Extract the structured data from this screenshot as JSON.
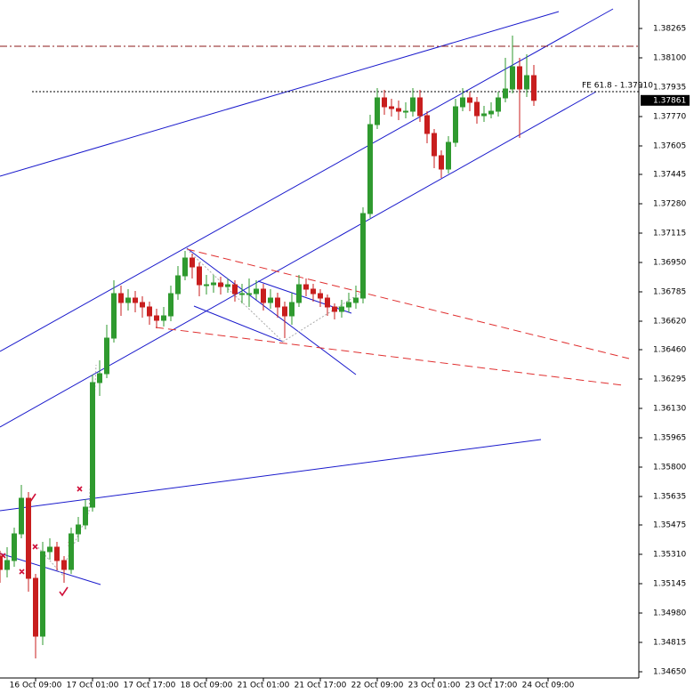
{
  "chart_data": {
    "type": "candlestick",
    "categories": [
      null,
      null,
      null,
      null,
      null,
      "16 Oct 09:00",
      null,
      null,
      null,
      null,
      null,
      null,
      null,
      "17 Oct 01:00",
      null,
      null,
      null,
      null,
      null,
      null,
      null,
      "17 Oct 17:00",
      null,
      null,
      null,
      null,
      null,
      null,
      null,
      "18 Oct 09:00",
      null,
      null,
      null,
      null,
      null,
      null,
      null,
      "21 Oct 01:00",
      null,
      null,
      null,
      null,
      null,
      null,
      null,
      "21 Oct 17:00",
      null,
      null,
      null,
      null,
      null,
      null,
      null,
      "22 Oct 09:00",
      null,
      null,
      null,
      null,
      null,
      null,
      null,
      "23 Oct 01:00",
      null,
      null,
      null,
      null,
      null,
      null,
      null,
      "23 Oct 17:00",
      null,
      null,
      null,
      null,
      null,
      null,
      null,
      "24 Oct 09:00"
    ],
    "open": [
      1.353,
      1.35225,
      1.35275,
      1.35425,
      1.35625,
      1.35175,
      1.3485,
      1.35325,
      1.3535,
      1.35275,
      1.35225,
      1.35425,
      1.35475,
      1.35575,
      1.36275,
      1.36325,
      1.36525,
      1.36775,
      1.36725,
      1.3675,
      1.36725,
      1.367,
      1.3665,
      1.36625,
      1.3665,
      1.36775,
      1.36875,
      1.36975,
      1.36925,
      1.36825,
      1.36825,
      1.36835,
      1.36815,
      1.36825,
      1.36775,
      1.36775,
      1.36775,
      1.368,
      1.36725,
      1.3675,
      1.367,
      1.3665,
      1.36725,
      1.36825,
      1.368,
      1.36775,
      1.3675,
      1.367,
      1.36675,
      1.367,
      1.36725,
      1.3675,
      1.37225,
      1.37725,
      1.37875,
      1.37825,
      1.37815,
      1.378,
      1.378,
      1.37875,
      1.37775,
      1.37675,
      1.3755,
      1.37475,
      1.37625,
      1.37825,
      1.37875,
      1.3785,
      1.37775,
      1.37785,
      1.378,
      1.37875,
      1.37925,
      1.3805,
      1.37925,
      1.38,
      null,
      null
    ],
    "high": [
      1.3533,
      1.3535,
      1.3546,
      1.357,
      1.3566,
      1.352,
      1.3538,
      1.354,
      1.3538,
      1.353,
      1.3546,
      1.3552,
      1.3562,
      1.3632,
      1.364,
      1.366,
      1.3685,
      1.3682,
      1.368,
      1.3679,
      1.3676,
      1.3673,
      1.3669,
      1.367,
      1.3682,
      1.3693,
      1.37015,
      1.37,
      1.3695,
      1.3688,
      1.3688,
      1.3687,
      1.3686,
      1.3685,
      1.3683,
      1.3686,
      1.3685,
      1.3683,
      1.368,
      1.3678,
      1.3673,
      1.3678,
      1.3688,
      1.3686,
      1.3683,
      1.368,
      1.3677,
      1.3672,
      1.3674,
      1.3678,
      1.3682,
      1.3726,
      1.3778,
      1.3793,
      1.3792,
      1.3787,
      1.3786,
      1.3785,
      1.3793,
      1.3792,
      1.378,
      1.377,
      1.3758,
      1.3766,
      1.3787,
      1.3793,
      1.3791,
      1.3788,
      1.3783,
      1.3785,
      1.3791,
      1.381,
      1.38225,
      1.381,
      1.3812,
      1.3806,
      null,
      null
    ],
    "low": [
      1.3515,
      1.3518,
      1.3524,
      1.354,
      1.351,
      1.34725,
      1.348,
      1.3528,
      1.3522,
      1.3515,
      1.352,
      1.3538,
      1.3545,
      1.3555,
      1.362,
      1.363,
      1.365,
      1.3665,
      1.3668,
      1.3667,
      1.3664,
      1.366,
      1.3658,
      1.3659,
      1.3662,
      1.3674,
      1.3685,
      1.3686,
      1.3676,
      1.3677,
      1.3678,
      1.3677,
      1.3678,
      1.3673,
      1.3672,
      1.367,
      1.3674,
      1.3668,
      1.3669,
      1.3664,
      1.36525,
      1.366,
      1.367,
      1.3676,
      1.3673,
      1.367,
      1.3665,
      1.3663,
      1.3664,
      1.3667,
      1.3669,
      1.3672,
      1.372,
      1.377,
      1.3778,
      1.3777,
      1.3775,
      1.3776,
      1.3777,
      1.3774,
      1.3762,
      1.3748,
      1.37425,
      1.3745,
      1.376,
      1.378,
      1.378,
      1.3773,
      1.3774,
      1.3776,
      1.3777,
      1.3785,
      1.379,
      1.3765,
      1.3788,
      1.3783,
      null,
      null
    ],
    "close": [
      1.35225,
      1.35275,
      1.35425,
      1.35625,
      1.35175,
      1.3485,
      1.35325,
      1.3535,
      1.35275,
      1.35225,
      1.35425,
      1.35475,
      1.35575,
      1.36275,
      1.36325,
      1.36525,
      1.36775,
      1.36725,
      1.3675,
      1.36725,
      1.367,
      1.3665,
      1.36625,
      1.3665,
      1.36775,
      1.36875,
      1.36975,
      1.36925,
      1.36825,
      1.36825,
      1.36835,
      1.36815,
      1.36825,
      1.36775,
      1.36775,
      1.36775,
      1.368,
      1.36725,
      1.3675,
      1.367,
      1.3665,
      1.36725,
      1.36825,
      1.368,
      1.36775,
      1.3675,
      1.367,
      1.36675,
      1.367,
      1.36725,
      1.3675,
      1.37225,
      1.37725,
      1.37875,
      1.37825,
      1.37815,
      1.378,
      1.378,
      1.37875,
      1.37775,
      1.37675,
      1.3755,
      1.37475,
      1.37625,
      1.37825,
      1.37875,
      1.3785,
      1.37775,
      1.37785,
      1.378,
      1.37875,
      1.37925,
      1.3805,
      1.37925,
      1.38,
      1.37861,
      null,
      null
    ],
    "up_color": "#2f9a2f",
    "down_color": "#c81e1e",
    "ylim": [
      1.34615,
      1.38425
    ],
    "yticks": [
      {
        "value": 1.38265,
        "label": "1.38265"
      },
      {
        "value": 1.381,
        "label": "1.38100"
      },
      {
        "value": 1.37935,
        "label": "1.37935"
      },
      {
        "value": 1.3777,
        "label": "1.37770"
      },
      {
        "value": 1.37605,
        "label": "1.37605"
      },
      {
        "value": 1.37445,
        "label": "1.37445"
      },
      {
        "value": 1.3728,
        "label": "1.37280"
      },
      {
        "value": 1.37115,
        "label": "1.37115"
      },
      {
        "value": 1.3695,
        "label": "1.36950"
      },
      {
        "value": 1.36785,
        "label": "1.36785"
      },
      {
        "value": 1.3662,
        "label": "1.36620"
      },
      {
        "value": 1.3646,
        "label": "1.36460"
      },
      {
        "value": 1.36295,
        "label": "1.36295"
      },
      {
        "value": 1.3613,
        "label": "1.36130"
      },
      {
        "value": 1.35965,
        "label": "1.35965"
      },
      {
        "value": 1.358,
        "label": "1.35800"
      },
      {
        "value": 1.35635,
        "label": "1.35635"
      },
      {
        "value": 1.35475,
        "label": "1.35475"
      },
      {
        "value": 1.3531,
        "label": "1.35310"
      },
      {
        "value": 1.35145,
        "label": "1.35145"
      },
      {
        "value": 1.3498,
        "label": "1.34980"
      },
      {
        "value": 1.34815,
        "label": "1.34815"
      },
      {
        "value": 1.3465,
        "label": "1.34650"
      }
    ],
    "last_price": 1.37861,
    "fe_level": {
      "value": 1.3791,
      "label": "FE 61.8 - 1.37910"
    },
    "level_line": {
      "value": 1.38165,
      "color": "#8b1a1a"
    }
  }
}
